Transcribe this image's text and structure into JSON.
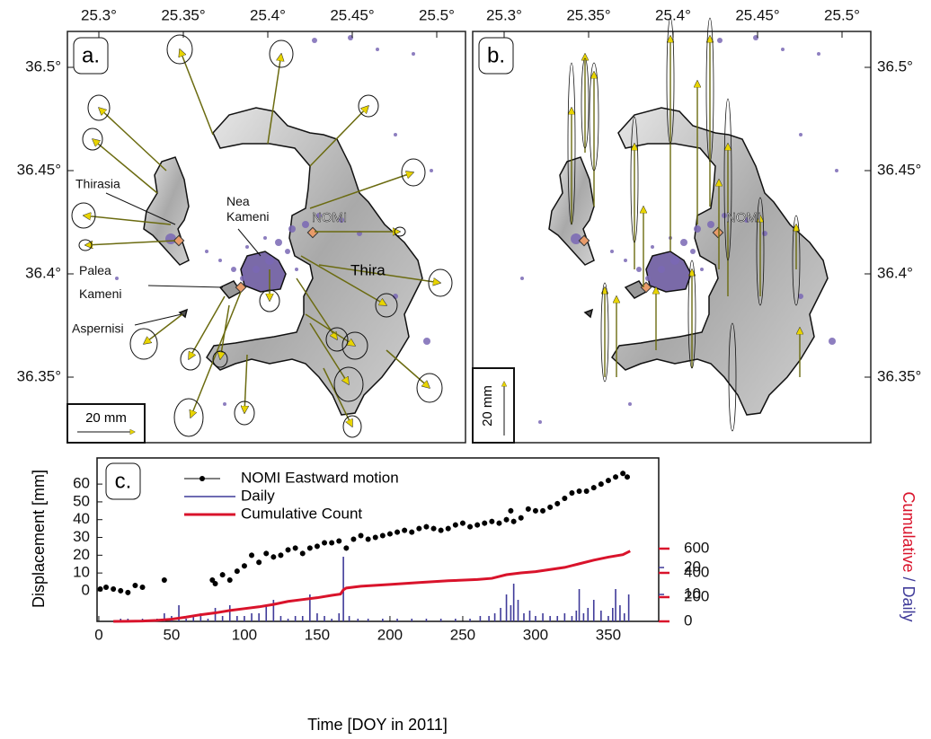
{
  "maps": {
    "lon_ticks": [
      {
        "value": 25.3,
        "label": "25.3°"
      },
      {
        "value": 25.35,
        "label": "25.35°"
      },
      {
        "value": 25.4,
        "label": "25.4°"
      },
      {
        "value": 25.45,
        "label": "25.45°"
      },
      {
        "value": 25.5,
        "label": "25.5°"
      }
    ],
    "lat_ticks": [
      {
        "value": 36.5,
        "label": "36.5°"
      },
      {
        "value": 36.45,
        "label": "36.45°"
      },
      {
        "value": 36.4,
        "label": "36.4°"
      },
      {
        "value": 36.35,
        "label": "36.35°"
      }
    ],
    "panel_a": {
      "label": "a.",
      "scale": "20 mm",
      "places": {
        "thirasia": "Thirasia",
        "nea_kameni": [
          "Nea",
          "Kameni"
        ],
        "palea_kameni": [
          "Palea",
          "Kameni"
        ],
        "aspernisi": "Aspernisi",
        "nomi": "NOMI",
        "thira": "Thira"
      }
    },
    "panel_b": {
      "label": "b.",
      "scale": "20 mm",
      "nomi": "NOMI"
    }
  },
  "chart_data": {
    "type": "combo",
    "panel_label": "c.",
    "x_label": "Time [DOY in 2011]",
    "y_label": "Displacement [mm]",
    "y_right_label": [
      "Cumulative",
      " / ",
      "Daily"
    ],
    "xlim": [
      -1.2,
      384.6
    ],
    "xticks": [
      0,
      50,
      100,
      150,
      200,
      250,
      300,
      350
    ],
    "ylim": [
      -17.2,
      74.7
    ],
    "yticks": [
      0,
      10,
      20,
      30,
      40,
      50,
      60
    ],
    "y2lim": [
      0,
      1348
    ],
    "y2ticks": [
      0,
      200,
      400,
      600
    ],
    "y3lim": [
      0,
      60.7
    ],
    "y3ticks": [
      10,
      20
    ],
    "series": [
      {
        "name": "NOMI Eastward motion",
        "color": "#000000",
        "type": "errorbar",
        "x": [
          1,
          5,
          10,
          15,
          20,
          25,
          30,
          45,
          78,
          80,
          85,
          90,
          95,
          100,
          105,
          110,
          115,
          120,
          125,
          130,
          135,
          140,
          145,
          150,
          155,
          160,
          165,
          170,
          175,
          180,
          185,
          190,
          195,
          200,
          205,
          210,
          215,
          220,
          225,
          230,
          235,
          240,
          245,
          250,
          255,
          260,
          265,
          270,
          275,
          280,
          283,
          285,
          290,
          295,
          300,
          305,
          310,
          315,
          320,
          325,
          330,
          335,
          340,
          345,
          350,
          355,
          360,
          363
        ],
        "values": [
          1,
          2,
          1,
          0,
          -1,
          3,
          2,
          6,
          6,
          4,
          9,
          6,
          11,
          14,
          20,
          16,
          21,
          19,
          20,
          23,
          24,
          21,
          24,
          25,
          27,
          27,
          28,
          24,
          29,
          31,
          29,
          30,
          31,
          32,
          33,
          34,
          33,
          35,
          36,
          35,
          34,
          35,
          37,
          38,
          36,
          37,
          38,
          39,
          38,
          40,
          45,
          39,
          41,
          46,
          45,
          45,
          47,
          49,
          52,
          55,
          56,
          56,
          58,
          60,
          62,
          64,
          66,
          64
        ],
        "errors": [
          1.5,
          1.5,
          1.5,
          1.5,
          1.5,
          1.5,
          1.5,
          1.5,
          1.5,
          1.5,
          1.5,
          1.5,
          1.5,
          1.5,
          1.5,
          1.5,
          1.5,
          1.5,
          1.5,
          1.5,
          1.5,
          1.5,
          1.5,
          1.5,
          1.5,
          1.5,
          1.5,
          1.5,
          1.5,
          1.5,
          1.5,
          1.5,
          1.5,
          1.5,
          1.5,
          1.5,
          1.5,
          1.5,
          1.5,
          1.5,
          1.5,
          1.5,
          1.5,
          1.5,
          1.5,
          1.5,
          1.5,
          1.5,
          1.5,
          1.5,
          1.5,
          1.5,
          1.5,
          1.5,
          1.5,
          1.5,
          1.5,
          1.5,
          1.5,
          1.5,
          1.5,
          1.5,
          1.5,
          1.5,
          1.5,
          1.5,
          1.5,
          1.5
        ]
      },
      {
        "name": "Daily",
        "color": "#3f3a99",
        "type": "bar",
        "axis": "y3",
        "x": [
          15,
          20,
          30,
          40,
          45,
          50,
          55,
          60,
          65,
          70,
          75,
          80,
          85,
          90,
          95,
          100,
          105,
          110,
          115,
          120,
          125,
          130,
          135,
          140,
          145,
          150,
          155,
          160,
          165,
          168,
          172,
          178,
          185,
          195,
          205,
          215,
          225,
          235,
          245,
          255,
          262,
          268,
          272,
          276,
          280,
          283,
          285,
          288,
          292,
          296,
          300,
          305,
          310,
          315,
          320,
          325,
          328,
          330,
          333,
          336,
          340,
          345,
          350,
          353,
          355,
          358,
          361,
          364
        ],
        "values": [
          1,
          1,
          1,
          1,
          3,
          2,
          6,
          1,
          2,
          3,
          1,
          5,
          2,
          6,
          2,
          2,
          3,
          3,
          6,
          8,
          2,
          1,
          2,
          2,
          10,
          3,
          2,
          1,
          3,
          24,
          2,
          1,
          1,
          1,
          1,
          1,
          1,
          1,
          1,
          1,
          2,
          2,
          3,
          5,
          10,
          6,
          14,
          8,
          3,
          4,
          2,
          3,
          2,
          2,
          3,
          2,
          4,
          12,
          3,
          5,
          8,
          4,
          2,
          5,
          12,
          6,
          3,
          10
        ]
      },
      {
        "name": "Cumulative Count",
        "color": "#d9132b",
        "type": "line",
        "axis": "y2",
        "x": [
          10,
          20,
          30,
          40,
          50,
          60,
          70,
          80,
          90,
          100,
          110,
          120,
          130,
          140,
          150,
          160,
          166,
          168,
          170,
          180,
          200,
          220,
          240,
          260,
          270,
          280,
          290,
          300,
          320,
          330,
          340,
          350,
          360,
          365
        ],
        "values": [
          0,
          1,
          3,
          8,
          18,
          35,
          55,
          70,
          90,
          105,
          120,
          140,
          165,
          180,
          195,
          215,
          225,
          260,
          275,
          290,
          305,
          320,
          335,
          345,
          355,
          385,
          400,
          410,
          445,
          475,
          505,
          530,
          550,
          580
        ]
      }
    ]
  }
}
